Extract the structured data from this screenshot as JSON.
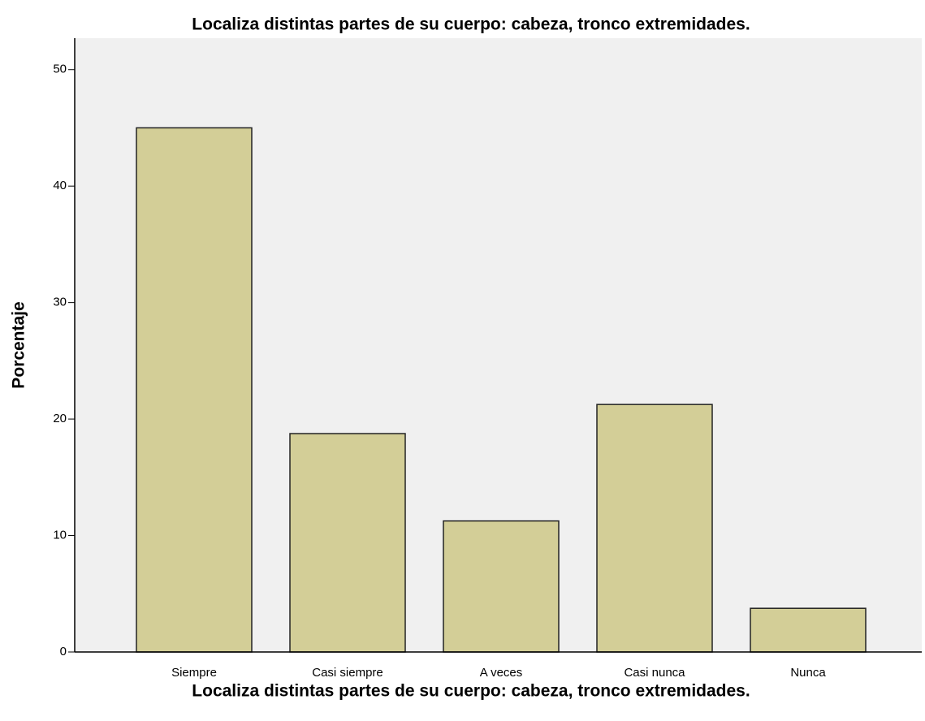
{
  "chart_data": {
    "type": "bar",
    "title": "Localiza distintas partes de su cuerpo: cabeza, tronco extremidades.",
    "x_label": "Localiza distintas partes de su cuerpo: cabeza, tronco extremidades.",
    "y_label": "Porcentaje",
    "categories": [
      "Siempre",
      "Casi siempre",
      "A veces",
      "Casi nunca",
      "Nunca"
    ],
    "values": [
      45,
      18.75,
      11.25,
      21.25,
      3.75
    ],
    "color": "#d3ce97",
    "ylim": [
      0,
      52.7
    ],
    "yticks": [
      0,
      10,
      20,
      30,
      40,
      50
    ],
    "grid": false
  }
}
